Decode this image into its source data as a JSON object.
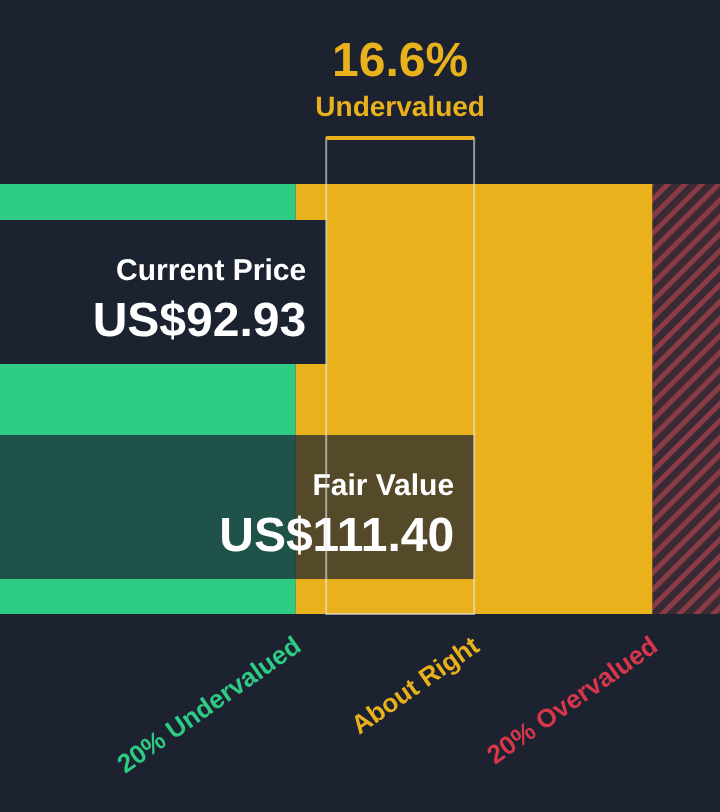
{
  "chart_data": {
    "type": "bar",
    "orientation": "horizontal",
    "categories": [
      "Current Price",
      "Fair Value"
    ],
    "series": [
      {
        "values": [
          92.93,
          111.4
        ],
        "colors": [
          "#1b2230",
          "#1b2230"
        ],
        "value_labels": [
          "US$92.93",
          "US$111.40"
        ]
      }
    ],
    "xlim": [
      52.2,
      142.1
    ],
    "tick_labels": false,
    "bands": [
      {
        "axis": "x",
        "from": 52.2,
        "to": 89.12,
        "label": "20% Undervalued",
        "color": "#2ecb84"
      },
      {
        "axis": "x",
        "from": 89.12,
        "to": 133.68,
        "label": "About Right",
        "color": "#e9b11c"
      },
      {
        "axis": "x",
        "from": 133.68,
        "to": 142.1,
        "label": "20% Overvalued",
        "color": "#d6374a"
      }
    ],
    "annotations": [
      "16.6%",
      "Undervalued"
    ]
  }
}
